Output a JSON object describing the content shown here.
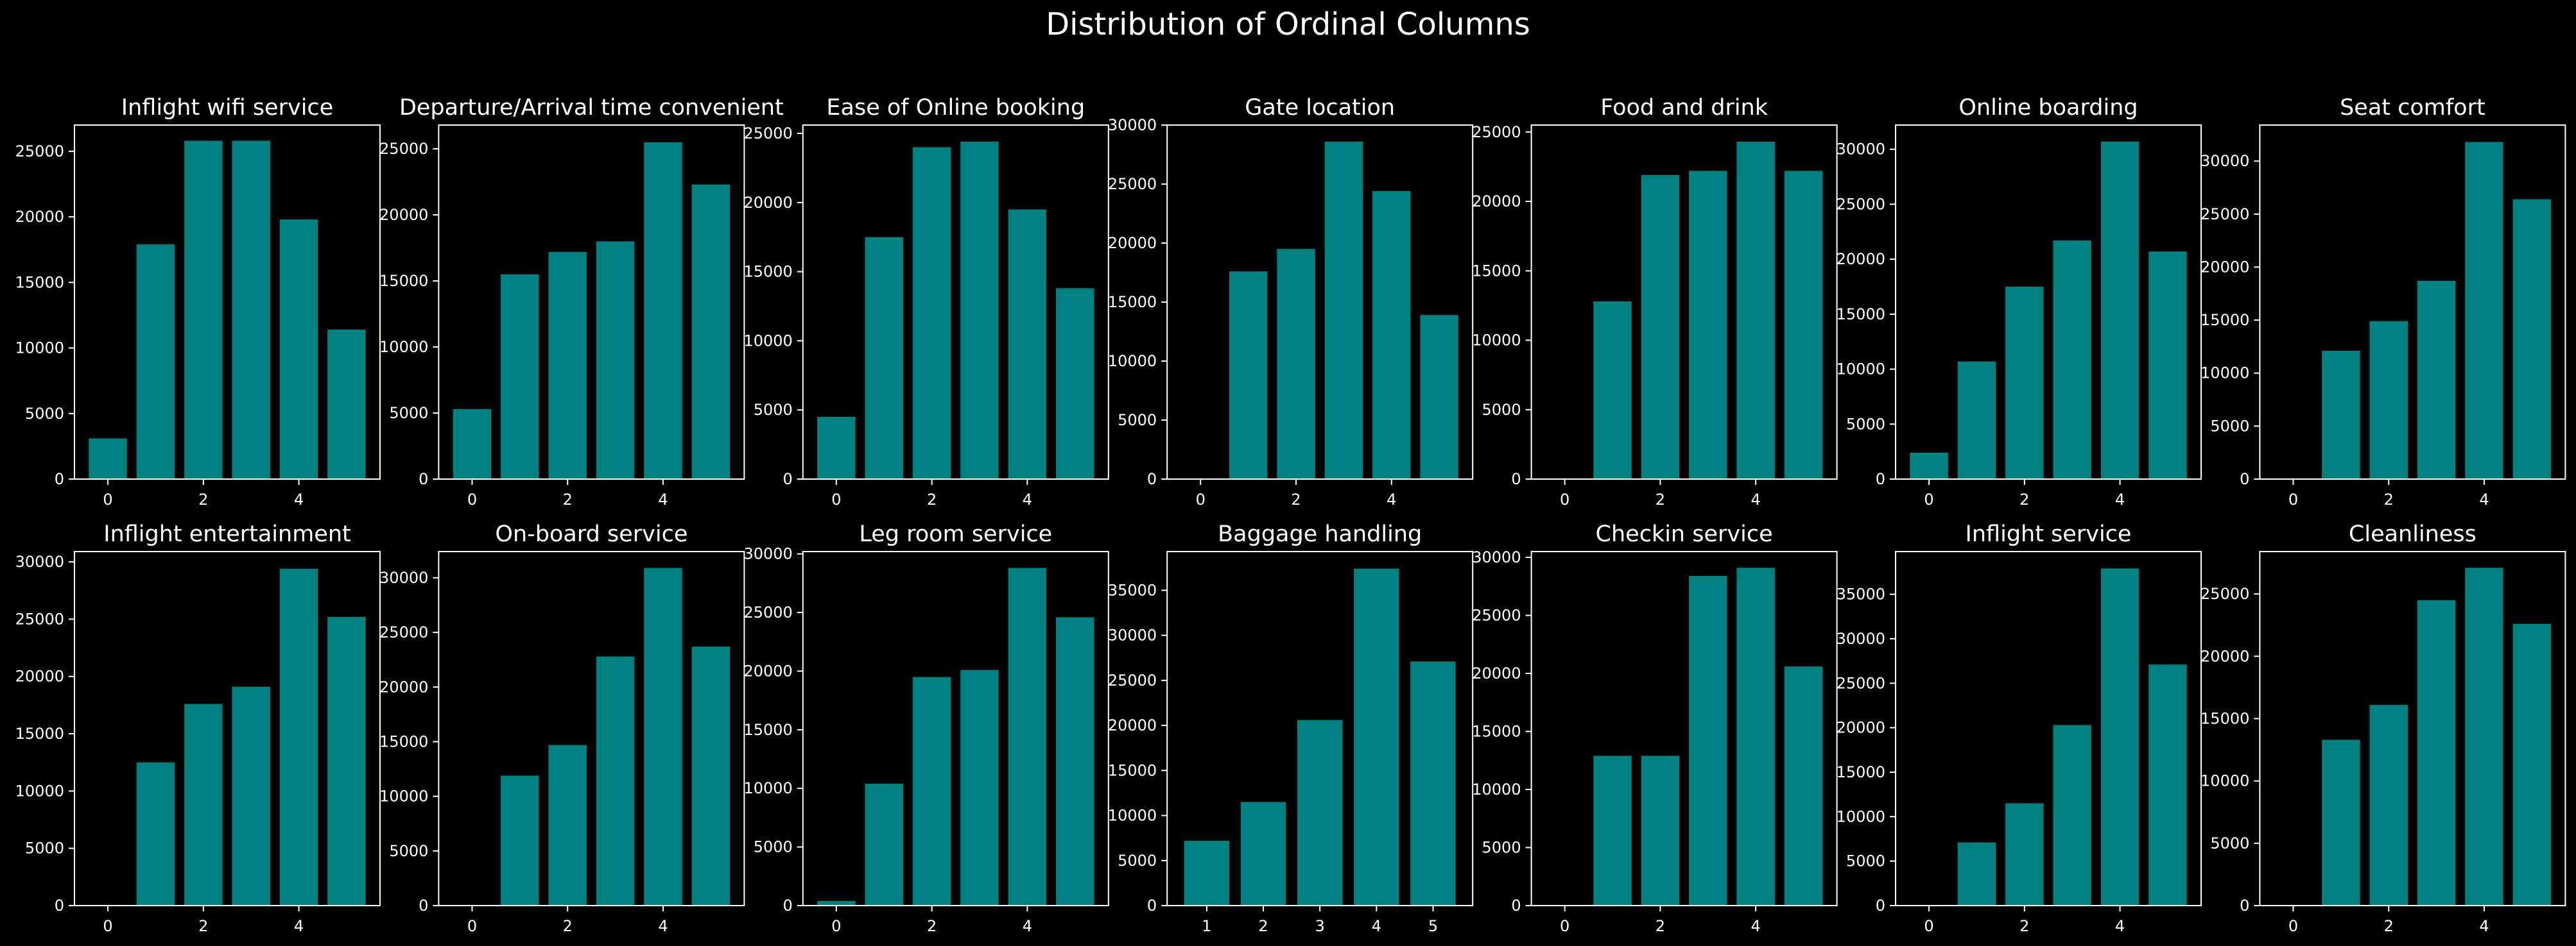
{
  "title": "Distribution of Ordinal Columns",
  "colors": {
    "background": "#000000",
    "bar": "#008080",
    "axes": "#ffffff",
    "text": "#ffffff"
  },
  "chart_data": [
    {
      "type": "bar",
      "title": "Inflight wifi service",
      "categories": [
        0,
        1,
        2,
        3,
        4,
        5
      ],
      "values": [
        3100,
        17900,
        25800,
        25800,
        19800,
        11400
      ],
      "xticks": [
        0,
        2,
        4
      ],
      "yticks": [
        0,
        5000,
        10000,
        15000,
        20000,
        25000
      ],
      "xlim": [
        -0.7,
        5.7
      ],
      "ylim": [
        0,
        27000
      ],
      "xlabel": "",
      "ylabel": "",
      "grid": false
    },
    {
      "type": "bar",
      "title": "Departure/Arrival time convenient",
      "categories": [
        0,
        1,
        2,
        3,
        4,
        5
      ],
      "values": [
        5300,
        15500,
        17200,
        18000,
        25500,
        22300
      ],
      "xticks": [
        0,
        2,
        4
      ],
      "yticks": [
        0,
        5000,
        10000,
        15000,
        20000,
        25000
      ],
      "xlim": [
        -0.7,
        5.7
      ],
      "ylim": [
        0,
        26800
      ],
      "xlabel": "",
      "ylabel": "",
      "grid": false
    },
    {
      "type": "bar",
      "title": "Ease of Online booking",
      "categories": [
        0,
        1,
        2,
        3,
        4,
        5
      ],
      "values": [
        4500,
        17500,
        24000,
        24400,
        19500,
        13800
      ],
      "xticks": [
        0,
        2,
        4
      ],
      "yticks": [
        0,
        5000,
        10000,
        15000,
        20000,
        25000
      ],
      "xlim": [
        -0.7,
        5.7
      ],
      "ylim": [
        0,
        25600
      ],
      "xlabel": "",
      "ylabel": "",
      "grid": false
    },
    {
      "type": "bar",
      "title": "Gate location",
      "categories": [
        0,
        1,
        2,
        3,
        4,
        5
      ],
      "values": [
        0,
        17600,
        19500,
        28600,
        24400,
        13900
      ],
      "xticks": [
        0,
        2,
        4
      ],
      "yticks": [
        0,
        5000,
        10000,
        15000,
        20000,
        25000,
        30000
      ],
      "xlim": [
        -0.7,
        5.7
      ],
      "ylim": [
        0,
        30000
      ],
      "xlabel": "",
      "ylabel": "",
      "grid": false
    },
    {
      "type": "bar",
      "title": "Food and drink",
      "categories": [
        0,
        1,
        2,
        3,
        4,
        5
      ],
      "values": [
        0,
        12800,
        21900,
        22200,
        24300,
        22200
      ],
      "xticks": [
        0,
        2,
        4
      ],
      "yticks": [
        0,
        5000,
        10000,
        15000,
        20000,
        25000
      ],
      "xlim": [
        -0.7,
        5.7
      ],
      "ylim": [
        0,
        25500
      ],
      "xlabel": "",
      "ylabel": "",
      "grid": false
    },
    {
      "type": "bar",
      "title": "Online boarding",
      "categories": [
        0,
        1,
        2,
        3,
        4,
        5
      ],
      "values": [
        2400,
        10700,
        17500,
        21700,
        30700,
        20700
      ],
      "xticks": [
        0,
        2,
        4
      ],
      "yticks": [
        0,
        5000,
        10000,
        15000,
        20000,
        25000,
        30000
      ],
      "xlim": [
        -0.7,
        5.7
      ],
      "ylim": [
        0,
        32200
      ],
      "xlabel": "",
      "ylabel": "",
      "grid": false
    },
    {
      "type": "bar",
      "title": "Seat comfort",
      "categories": [
        0,
        1,
        2,
        3,
        4,
        5
      ],
      "values": [
        0,
        12100,
        14900,
        18700,
        31800,
        26400
      ],
      "xticks": [
        0,
        2,
        4
      ],
      "yticks": [
        0,
        5000,
        10000,
        15000,
        20000,
        25000,
        30000
      ],
      "xlim": [
        -0.7,
        5.7
      ],
      "ylim": [
        0,
        33400
      ],
      "xlabel": "",
      "ylabel": "",
      "grid": false
    },
    {
      "type": "bar",
      "title": "Inflight entertainment",
      "categories": [
        0,
        1,
        2,
        3,
        4,
        5
      ],
      "values": [
        0,
        12500,
        17600,
        19100,
        29400,
        25200
      ],
      "xticks": [
        0,
        2,
        4
      ],
      "yticks": [
        0,
        5000,
        10000,
        15000,
        20000,
        25000,
        30000
      ],
      "xlim": [
        -0.7,
        5.7
      ],
      "ylim": [
        0,
        30900
      ],
      "xlabel": "",
      "ylabel": "",
      "grid": false
    },
    {
      "type": "bar",
      "title": "On-board service",
      "categories": [
        0,
        1,
        2,
        3,
        4,
        5
      ],
      "values": [
        0,
        11900,
        14700,
        22800,
        30900,
        23700
      ],
      "xticks": [
        0,
        2,
        4
      ],
      "yticks": [
        0,
        5000,
        10000,
        15000,
        20000,
        25000,
        30000
      ],
      "xlim": [
        -0.7,
        5.7
      ],
      "ylim": [
        0,
        32400
      ],
      "xlabel": "",
      "ylabel": "",
      "grid": false
    },
    {
      "type": "bar",
      "title": "Leg room service",
      "categories": [
        0,
        1,
        2,
        3,
        4,
        5
      ],
      "values": [
        400,
        10400,
        19500,
        20100,
        28800,
        24600
      ],
      "xticks": [
        0,
        2,
        4
      ],
      "yticks": [
        0,
        5000,
        10000,
        15000,
        20000,
        25000,
        30000
      ],
      "xlim": [
        -0.7,
        5.7
      ],
      "ylim": [
        0,
        30200
      ],
      "xlabel": "",
      "ylabel": "",
      "grid": false
    },
    {
      "type": "bar",
      "title": "Baggage handling",
      "categories": [
        1,
        2,
        3,
        4,
        5
      ],
      "values": [
        7200,
        11500,
        20600,
        37400,
        27100
      ],
      "xticks": [
        1,
        2,
        3,
        4,
        5
      ],
      "yticks": [
        0,
        5000,
        10000,
        15000,
        20000,
        25000,
        30000,
        35000
      ],
      "xlim": [
        0.3,
        5.7
      ],
      "ylim": [
        0,
        39300
      ],
      "xlabel": "",
      "ylabel": "",
      "grid": false
    },
    {
      "type": "bar",
      "title": "Checkin service",
      "categories": [
        0,
        1,
        2,
        3,
        4,
        5
      ],
      "values": [
        0,
        12900,
        12900,
        28400,
        29100,
        20600
      ],
      "xticks": [
        0,
        2,
        4
      ],
      "yticks": [
        0,
        5000,
        10000,
        15000,
        20000,
        25000,
        30000
      ],
      "xlim": [
        -0.7,
        5.7
      ],
      "ylim": [
        0,
        30500
      ],
      "xlabel": "",
      "ylabel": "",
      "grid": false
    },
    {
      "type": "bar",
      "title": "Inflight service",
      "categories": [
        0,
        1,
        2,
        3,
        4,
        5
      ],
      "values": [
        0,
        7100,
        11500,
        20300,
        37900,
        27100
      ],
      "xticks": [
        0,
        2,
        4
      ],
      "yticks": [
        0,
        5000,
        10000,
        15000,
        20000,
        25000,
        30000,
        35000
      ],
      "xlim": [
        -0.7,
        5.7
      ],
      "ylim": [
        0,
        39800
      ],
      "xlabel": "",
      "ylabel": "",
      "grid": false
    },
    {
      "type": "bar",
      "title": "Cleanliness",
      "categories": [
        0,
        1,
        2,
        3,
        4,
        5
      ],
      "values": [
        0,
        13300,
        16100,
        24500,
        27100,
        22600
      ],
      "xticks": [
        0,
        2,
        4
      ],
      "yticks": [
        0,
        5000,
        10000,
        15000,
        20000,
        25000
      ],
      "xlim": [
        -0.7,
        5.7
      ],
      "ylim": [
        0,
        28400
      ],
      "xlabel": "",
      "ylabel": "",
      "grid": false
    }
  ]
}
